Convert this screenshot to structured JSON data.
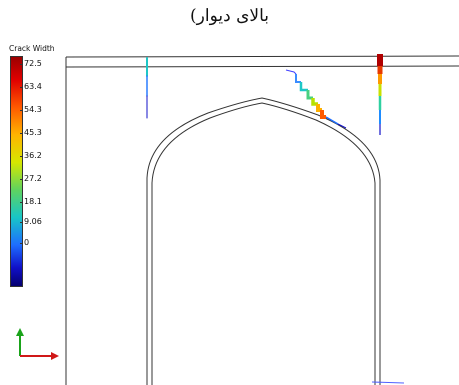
{
  "title": "بالای دیوار)",
  "legend": {
    "title": "Crack Width",
    "ticks": [
      "72.5",
      "63.4",
      "54.3",
      "45.3",
      "36.2",
      "27.2",
      "18.1",
      "9.06",
      "0"
    ]
  },
  "colors": {
    "axis_vertical": "#1aa31a",
    "axis_horizontal": "#d01818",
    "outline": "#333333"
  }
}
